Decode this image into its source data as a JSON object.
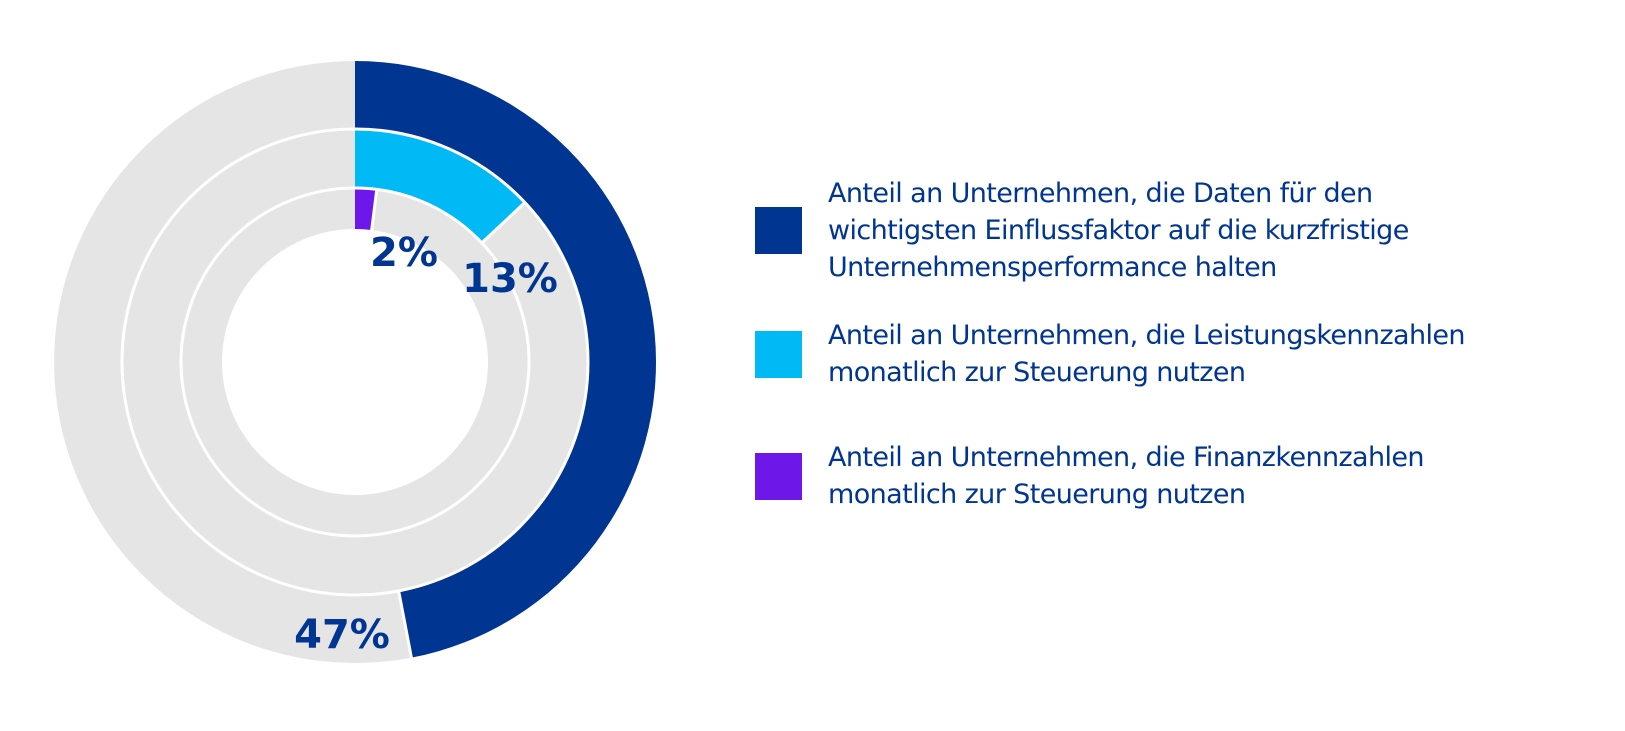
{
  "chart_data": {
    "type": "pie",
    "subtype": "concentric-donut",
    "title": "",
    "start_angle": "12 o'clock",
    "direction": "clockwise",
    "background_color": "#e5e5e5",
    "separator_color": "#ffffff",
    "series": [
      {
        "name": "Anteil an Unternehmen, die Daten für den wichtigsten Einflussfaktor auf die kurzfristige Unternehmensperformance halten",
        "ring": "outer",
        "value": 47,
        "label": "47%",
        "color": "#003591"
      },
      {
        "name": "Anteil an Unternehmen, die Leistungskennzahlen monatlich zur Steuerung nutzen",
        "ring": "middle",
        "value": 13,
        "label": "13%",
        "color": "#00b9f5"
      },
      {
        "name": "Anteil an Unternehmen, die Finanzkennzahlen monatlich zur Steuerung nutzen",
        "ring": "inner",
        "value": 2,
        "label": "2%",
        "color": "#6d17e8"
      }
    ],
    "unit": "%",
    "max": 100,
    "legend_position": "right"
  },
  "legend": {
    "items": [
      {
        "lines": [
          "Anteil an Unternehmen, die Daten für den",
          "wichtigsten Einflussfaktor auf die kurzfristige",
          "Unternehmensperformance halten"
        ],
        "color": "#003591"
      },
      {
        "lines": [
          "Anteil an Unternehmen, die Leistungskennzahlen",
          "monatlich zur Steuerung nutzen"
        ],
        "color": "#00b9f5"
      },
      {
        "lines": [
          "Anteil an Unternehmen, die Finanzkennzahlen",
          "monatlich zur Steuerung nutzen"
        ],
        "color": "#6d17e8"
      }
    ]
  }
}
